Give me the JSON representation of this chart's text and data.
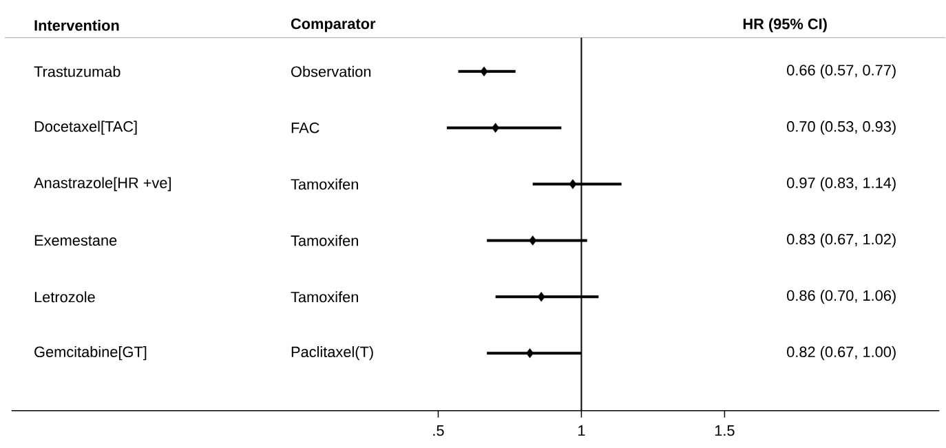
{
  "chart_data": {
    "type": "scatter",
    "orientation": "horizontal",
    "categories": [
      "Trastuzumab",
      "Docetaxel[TAC]",
      "Anastrazole[HR +ve]",
      "Exemestane",
      "Letrozole",
      "Gemcitabine[GT]"
    ],
    "values": [
      0.66,
      0.7,
      0.97,
      0.83,
      0.86,
      0.82
    ],
    "errors": [
      [
        0.57,
        0.77
      ],
      [
        0.53,
        0.93
      ],
      [
        0.83,
        1.14
      ],
      [
        0.67,
        1.02
      ],
      [
        0.7,
        1.06
      ],
      [
        0.67,
        1.0
      ]
    ],
    "annotations": [
      "Intervention",
      "Comparator",
      "HR (95% CI)",
      "Observation",
      "FAC",
      "Tamoxifen",
      "Tamoxifen",
      "Tamoxifen",
      "Paclitaxel(T)",
      "0.66 (0.57, 0.77)",
      "0.70 (0.53, 0.93)",
      "0.97 (0.83, 1.14)",
      "0.83 (0.67, 1.02)",
      "0.86 (0.70, 1.06)",
      "0.82 (0.67, 1.00)"
    ],
    "color": "#000000",
    "marker": "diamond",
    "xlim": [
      -0.99,
      2.25
    ],
    "xticks": [
      {
        "value": 0.5,
        "label": ".5"
      },
      1,
      {
        "value": 1.5,
        "label": "1.5"
      }
    ],
    "ref_lines": [
      {
        "axis": "x",
        "value": 1,
        "color": "#000000"
      }
    ],
    "grid": false
  }
}
